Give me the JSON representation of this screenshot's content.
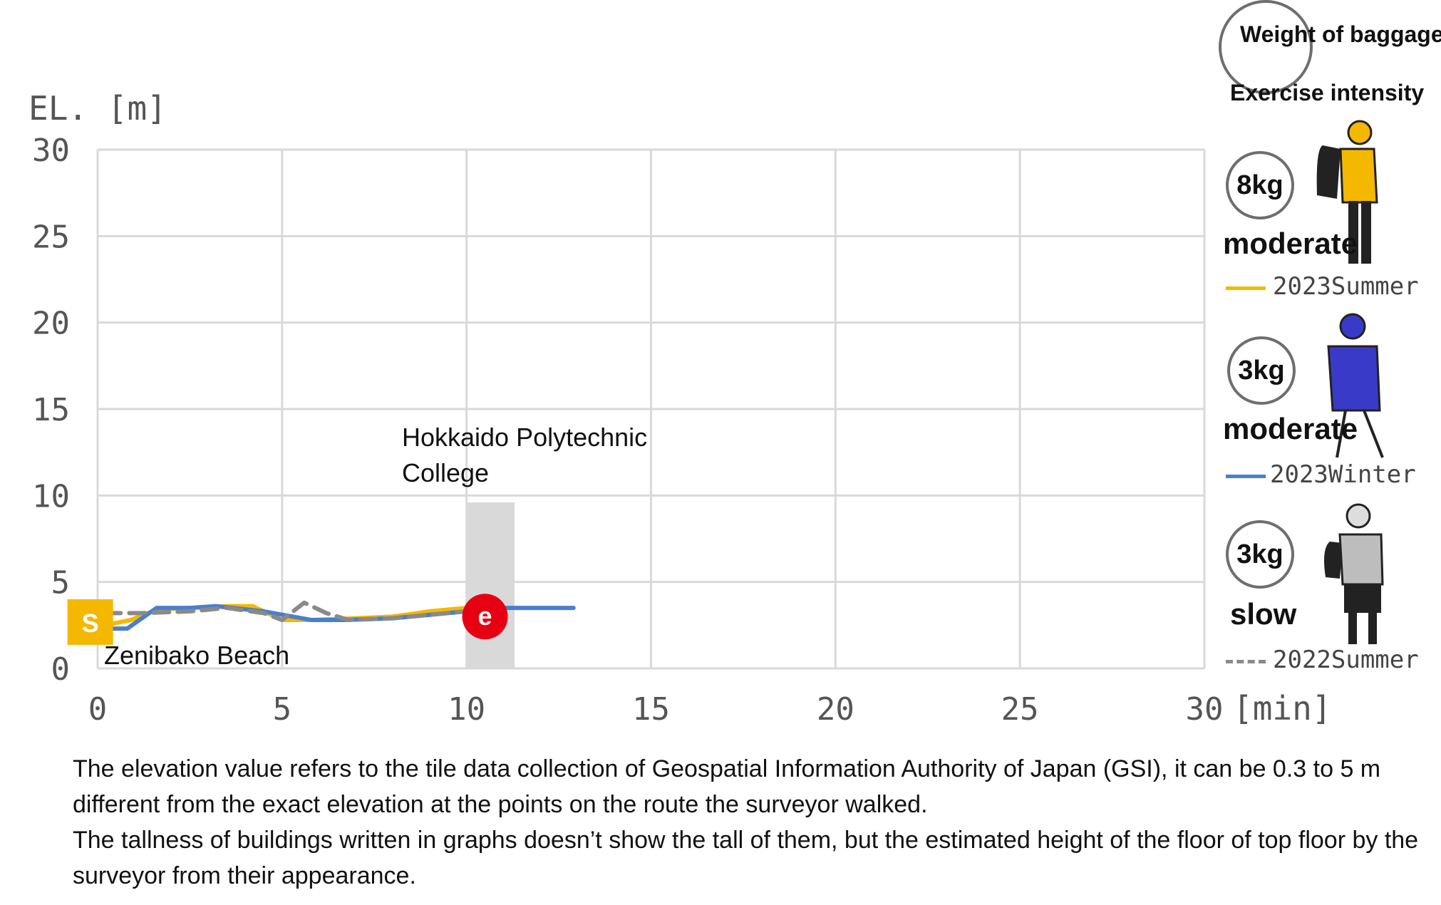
{
  "chart_data": {
    "type": "line",
    "ylabel": "EL. [m]",
    "xlabel": "[min]",
    "xlim": [
      0,
      30
    ],
    "ylim": [
      0,
      30
    ],
    "xticks": [
      0,
      5,
      10,
      15,
      20,
      25,
      30
    ],
    "yticks": [
      0,
      5,
      10,
      15,
      20,
      25,
      30
    ],
    "grid": true,
    "series": [
      {
        "name": "2023Summer",
        "color": "#F5B800",
        "style": "solid",
        "x": [
          0.2,
          0.9,
          1.6,
          2.5,
          3.5,
          4.2,
          5.0,
          5.8,
          7.0,
          8.0,
          9.0,
          10.0,
          11.0
        ],
        "y": [
          2.5,
          2.8,
          3.4,
          3.5,
          3.6,
          3.6,
          2.8,
          2.8,
          2.9,
          3.0,
          3.3,
          3.5,
          3.5
        ]
      },
      {
        "name": "2023Winter",
        "color": "#4A7FCB",
        "style": "solid",
        "x": [
          0.2,
          0.8,
          1.6,
          2.5,
          3.2,
          4.5,
          5.8,
          6.7,
          8.0,
          9.0,
          10.0,
          11.0,
          12.9
        ],
        "y": [
          2.3,
          2.3,
          3.5,
          3.5,
          3.6,
          3.3,
          2.8,
          2.8,
          2.9,
          3.1,
          3.3,
          3.5,
          3.5
        ]
      },
      {
        "name": "2022Summer",
        "color": "#8A8A8A",
        "style": "dashed",
        "x": [
          0.2,
          1.2,
          2.5,
          3.5,
          4.5,
          5.0,
          5.6,
          6.2,
          6.8,
          8.0,
          9.0,
          10.0
        ],
        "y": [
          3.2,
          3.2,
          3.3,
          3.5,
          3.2,
          2.8,
          3.8,
          3.2,
          2.8,
          2.9,
          3.1,
          3.3
        ]
      }
    ],
    "buildings": [
      {
        "label": "Hokkaido Polytechnic College",
        "label_lines": [
          "Hokkaido Polytechnic",
          "College"
        ],
        "x_start": 10.0,
        "x_end": 11.3,
        "height": 9.6,
        "color": "#D9D9D9"
      }
    ],
    "markers": [
      {
        "kind": "start",
        "text": "S",
        "x": -0.2,
        "y": 2.6,
        "color": "#F5B800",
        "place_label": "Zenibako Beach"
      },
      {
        "kind": "end",
        "text": "e",
        "x": 10.5,
        "y": 3.0,
        "color": "#E60012"
      }
    ]
  },
  "legend": {
    "weight_title": "Weight of baggage",
    "intensity_title": "Exercise intensity",
    "entries": [
      {
        "weight": "8kg",
        "intensity": "moderate",
        "season": "2023Summer",
        "color": "#F5B800",
        "style": "solid",
        "icon": "hiker-yellow-icon"
      },
      {
        "weight": "3kg",
        "intensity": "moderate",
        "season": "2023Winter",
        "color": "#4A7FCB",
        "style": "solid",
        "icon": "hiker-blue-icon"
      },
      {
        "weight": "3kg",
        "intensity": "slow",
        "season": "2022Summer",
        "color": "#8A8A8A",
        "style": "dashed",
        "icon": "hiker-gray-icon"
      }
    ]
  },
  "notes": [
    "The elevation value refers to the tile data collection of Geospatial Information Authority of Japan (GSI), it can be 0.3 to 5 m different from the exact elevation at the points on the route the surveyor walked.",
    "The tallness of buildings written in graphs doesn’t show the tall of them, but the estimated height of the floor of top floor by the surveyor from their appearance."
  ]
}
